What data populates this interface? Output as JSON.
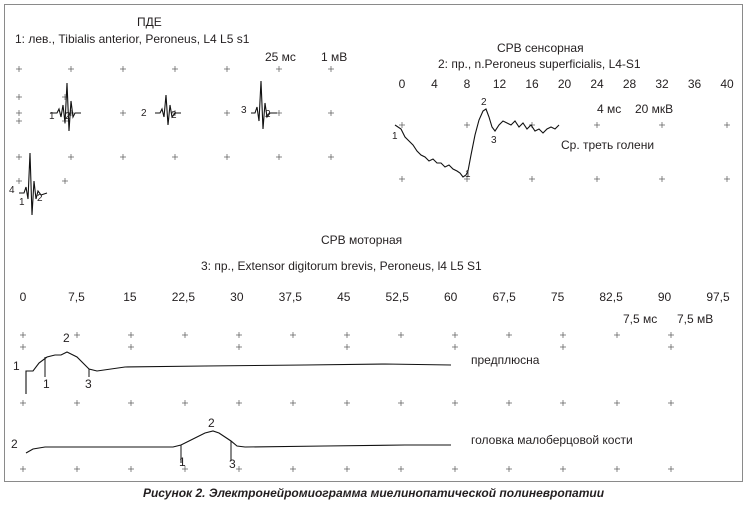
{
  "pde": {
    "title": "ПДЕ",
    "subtitle": "1: лев., Tibialis  anterior, Peroneus, L4 L5 s1",
    "scale_time": "25 мс",
    "scale_amp": "1 мВ",
    "markers": [
      "1",
      "2",
      "2",
      "2",
      "3",
      "2",
      "4",
      "1",
      "2"
    ]
  },
  "sensory": {
    "title": "СРВ сенсорная",
    "subtitle": "2: пр., n.Peroneus superficialis, L4-S1",
    "axis_ticks": [
      "0",
      "4",
      "8",
      "12",
      "16",
      "20",
      "24",
      "28",
      "32",
      "36",
      "40"
    ],
    "scale_time": "4 мс",
    "scale_amp": "20 мкВ",
    "site_label": "Ср. треть голени",
    "markers": [
      "1",
      "2",
      "3",
      "1"
    ]
  },
  "motor": {
    "title": "СРВ моторная",
    "subtitle": "3: пр., Extensor digitorum brevis, Peroneus, l4 L5 S1",
    "axis_ticks": [
      "0",
      "7,5",
      "15",
      "22,5",
      "30",
      "37,5",
      "45",
      "52,5",
      "60",
      "67,5",
      "75",
      "82,5",
      "90",
      "97,5"
    ],
    "scale_time": "7,5 мс",
    "scale_amp": "7,5 мВ",
    "traces": [
      {
        "label": "предплюсна",
        "id": "1",
        "markers": [
          "2",
          "1",
          "3"
        ]
      },
      {
        "label": "головка малоберцовой кости",
        "id": "2",
        "markers": [
          "2",
          "1",
          "3"
        ]
      }
    ]
  },
  "caption": "Рисунок 2. Электронейромиограмма миелинопатической полиневропатии"
}
